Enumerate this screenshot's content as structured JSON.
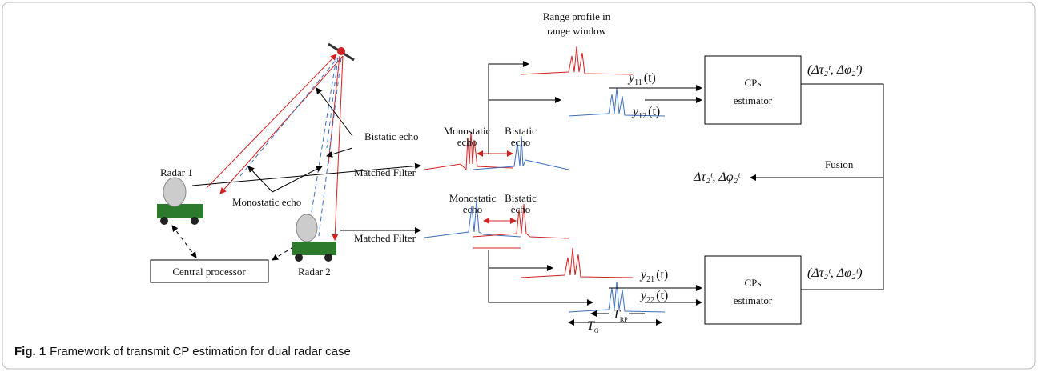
{
  "figure": {
    "caption": {
      "label": "Fig. 1",
      "text": "Framework of transmit CP estimation for dual radar case"
    },
    "scene": {
      "radar_1": "Radar 1",
      "radar_2": "Radar 2",
      "central_processor": "Central processor",
      "bistatic_echo": "Bistatic echo",
      "monostatic_echo": "Monostatic echo"
    },
    "matched_filters": [
      "Matched Filter",
      "Matched Filter"
    ],
    "echo_labels": [
      {
        "monostatic": [
          "Monostatic",
          "echo"
        ],
        "bistatic": [
          "Bistatic",
          "echo"
        ]
      },
      {
        "monostatic": [
          "Monostatic",
          "echo"
        ],
        "bistatic": [
          "Bistatic",
          "echo"
        ]
      }
    ],
    "range_profile_label": [
      "Range profile in",
      "range window"
    ],
    "signals": [
      {
        "symbol": "y",
        "subscript": "11",
        "argument": "(t)"
      },
      {
        "symbol": "y",
        "subscript": "12",
        "argument": "(t)"
      },
      {
        "symbol": "y",
        "subscript": "21",
        "argument": "(t)"
      },
      {
        "symbol": "y",
        "subscript": "22",
        "argument": "(t)"
      }
    ],
    "estimators": [
      [
        "CPs",
        "estimator"
      ],
      [
        "CPs",
        "estimator"
      ]
    ],
    "estimates": [
      "(Δτ₂ᵗ, Δφ₂ᵗ)",
      "(Δτ₂ᵗ, Δφ₂ᵗ)"
    ],
    "fusion": "Fusion",
    "fused_estimate": "Δτ₂ᵗ, Δφ₂ᵗ",
    "windows": [
      {
        "symbol": "T",
        "subscript": "G"
      },
      {
        "symbol": "T",
        "subscript": "RP"
      }
    ]
  }
}
